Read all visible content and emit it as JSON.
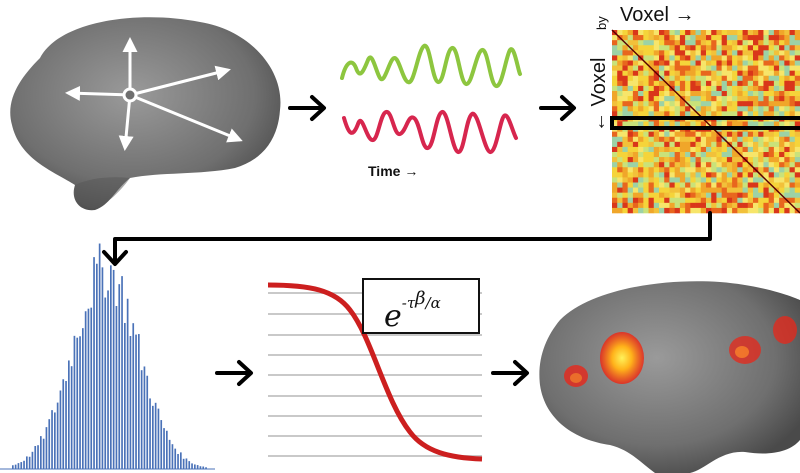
{
  "timeseries": {
    "axis_label": "Time →"
  },
  "matrix": {
    "top_label": "Voxel →",
    "by_label": "by",
    "side_label": "← Voxel"
  },
  "formula": {
    "base": "e",
    "exponent_prefix": "-τ",
    "exponent_power": "β",
    "exponent_suffix": "/α"
  },
  "colors": {
    "brain": "#7a7a7a",
    "series_top": "#8dc63f",
    "series_bottom": "#d7264e",
    "histogram": "#4a72b8",
    "curve": "#cc1f1f",
    "arrow": "#000000"
  },
  "icons": [
    "brain-icon",
    "vector-star-icon",
    "right-arrow-icon",
    "down-arrow-icon"
  ]
}
